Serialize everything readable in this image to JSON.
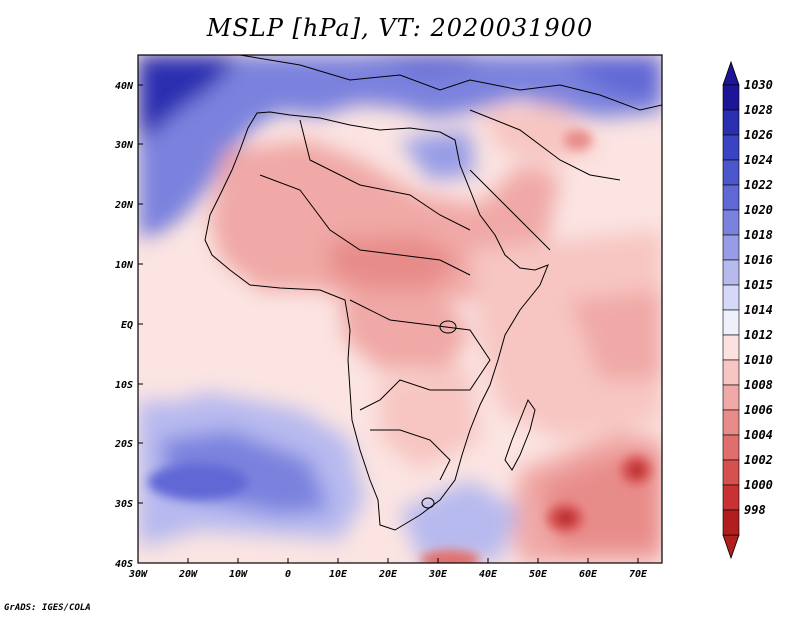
{
  "title": "MSLP [hPa], VT: 2020031900",
  "credit": "GrADS: IGES/COLA",
  "map": {
    "lon_labels": [
      "30W",
      "20W",
      "10W",
      "0",
      "10E",
      "20E",
      "30E",
      "40E",
      "50E",
      "60E",
      "70E"
    ],
    "lat_labels": [
      "40N",
      "30N",
      "20N",
      "10N",
      "EQ",
      "10S",
      "20S",
      "30S",
      "40S"
    ]
  },
  "colorbar": {
    "levels": [
      "1030",
      "1028",
      "1026",
      "1024",
      "1022",
      "1020",
      "1018",
      "1016",
      "1015",
      "1014",
      "1012",
      "1010",
      "1008",
      "1006",
      "1004",
      "1002",
      "1000",
      "998"
    ],
    "colors": [
      "#1e1496",
      "#2a2fb0",
      "#3a44c2",
      "#4d57cc",
      "#6068d6",
      "#7a82de",
      "#969ce6",
      "#b7baef",
      "#d6d8f7",
      "#eef0fb",
      "#fbe2e0",
      "#f7c6c2",
      "#f0a9a6",
      "#e88c8a",
      "#e06e6c",
      "#d65050",
      "#c83232",
      "#b01e1e"
    ]
  }
}
